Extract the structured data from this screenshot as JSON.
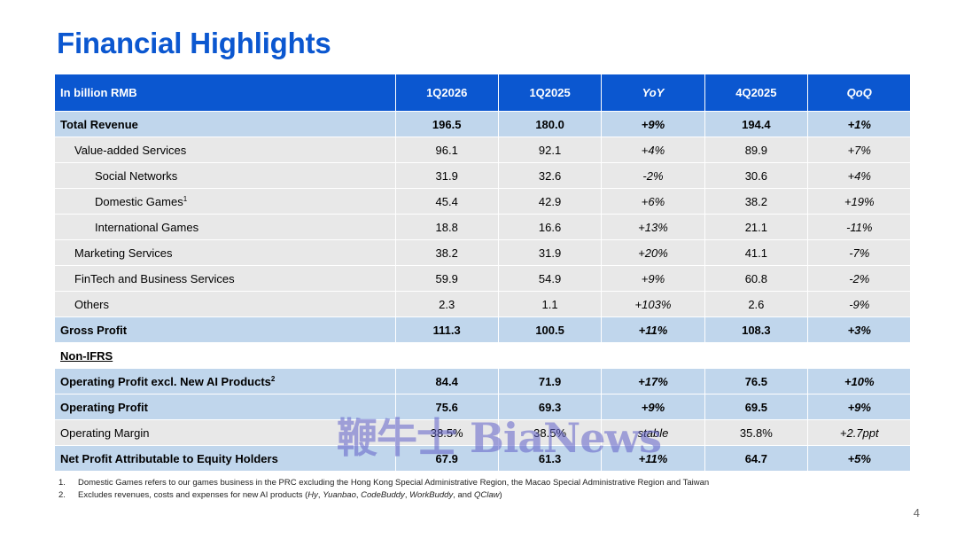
{
  "title": "Financial Highlights",
  "columns": [
    "In billion RMB",
    "1Q2026",
    "1Q2025",
    "YoY",
    "4Q2025",
    "QoQ"
  ],
  "rows": [
    {
      "label": "Total Revenue",
      "sup": "",
      "cells": [
        "196.5",
        "180.0",
        "+9%",
        "194.4",
        "+1%"
      ]
    },
    {
      "label": "Value-added Services",
      "sup": "",
      "cells": [
        "96.1",
        "92.1",
        "+4%",
        "89.9",
        "+7%"
      ]
    },
    {
      "label": "Social Networks",
      "sup": "",
      "cells": [
        "31.9",
        "32.6",
        "-2%",
        "30.6",
        "+4%"
      ]
    },
    {
      "label": "Domestic Games",
      "sup": "1",
      "cells": [
        "45.4",
        "42.9",
        "+6%",
        "38.2",
        "+19%"
      ]
    },
    {
      "label": "International Games",
      "sup": "",
      "cells": [
        "18.8",
        "16.6",
        "+13%",
        "21.1",
        "-11%"
      ]
    },
    {
      "label": "Marketing Services",
      "sup": "",
      "cells": [
        "38.2",
        "31.9",
        "+20%",
        "41.1",
        "-7%"
      ]
    },
    {
      "label": "FinTech and Business Services",
      "sup": "",
      "cells": [
        "59.9",
        "54.9",
        "+9%",
        "60.8",
        "-2%"
      ]
    },
    {
      "label": "Others",
      "sup": "",
      "cells": [
        "2.3",
        "1.1",
        "+103%",
        "2.6",
        "-9%"
      ]
    },
    {
      "label": "Gross Profit",
      "sup": "",
      "cells": [
        "111.3",
        "100.5",
        "+11%",
        "108.3",
        "+3%"
      ]
    },
    {
      "label": "Non-IFRS",
      "sup": "",
      "cells": [
        "",
        "",
        "",
        "",
        ""
      ]
    },
    {
      "label": "Operating Profit excl. New AI Products",
      "sup": "2",
      "cells": [
        "84.4",
        "71.9",
        "+17%",
        "76.5",
        "+10%"
      ]
    },
    {
      "label": "Operating Profit",
      "sup": "",
      "cells": [
        "75.6",
        "69.3",
        "+9%",
        "69.5",
        "+9%"
      ]
    },
    {
      "label": "Operating Margin",
      "sup": "",
      "cells": [
        "38.5%",
        "38.5%",
        "stable",
        "35.8%",
        "+2.7ppt"
      ]
    },
    {
      "label": "Net Profit Attributable to Equity Holders",
      "sup": "",
      "cells": [
        "67.9",
        "61.3",
        "+11%",
        "64.7",
        "+5%"
      ]
    }
  ],
  "footnotes": [
    {
      "num": "1.",
      "text": "Domestic Games refers to our games business in the PRC excluding the Hong Kong Special Administrative Region, the Macao Special Administrative Region and Taiwan"
    },
    {
      "num": "2.",
      "prefix": "Excludes revenues, costs and expenses for new AI products (",
      "items": [
        "Hy",
        "Yuanbao",
        "CodeBuddy",
        "WorkBuddy",
        "QClaw"
      ],
      "sep1": ", ",
      "sep2": ", ",
      "sep3": ", ",
      "sep4": ", and ",
      "suffix": ")"
    }
  ],
  "watermark": "鞭牛士 BiaNews",
  "page_number": "4",
  "colors": {
    "title": "#0b57d0",
    "header_bg": "#0b57d0",
    "highlight_row": "#c0d6ec",
    "grey_row": "#e8e8e8"
  }
}
